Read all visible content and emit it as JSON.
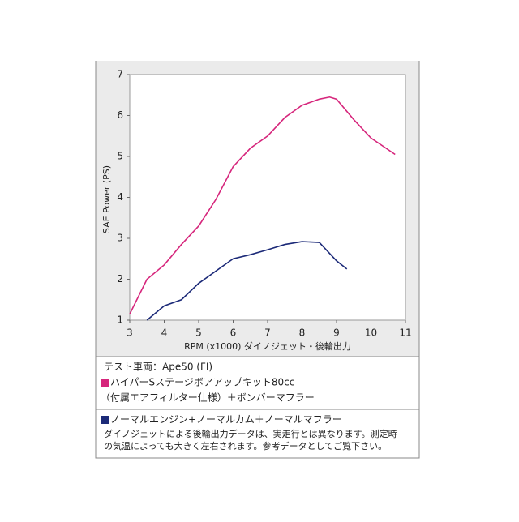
{
  "chart_data": {
    "type": "line",
    "ylabel": "SAE Power (PS)",
    "xlabel": "RPM (x1000) ダイノジェット・後輪出力",
    "xlim": [
      3,
      11
    ],
    "xticks": [
      3,
      4,
      5,
      6,
      7,
      8,
      9,
      10,
      11
    ],
    "ylim": [
      1,
      7
    ],
    "yticks": [
      1,
      2,
      3,
      4,
      5,
      6,
      7
    ],
    "test_vehicle": "テスト車両：Ape50 (FI)",
    "series": [
      {
        "name": "ハイパーSステージボアアップキット80cc",
        "detail": "（付属エアフィルター仕様）＋ボンバーマフラー",
        "color": "#d6267c",
        "x": [
          3.0,
          3.5,
          4.0,
          4.5,
          5.0,
          5.5,
          6.0,
          6.5,
          7.0,
          7.5,
          8.0,
          8.5,
          8.8,
          9.0,
          9.5,
          10.0,
          10.7
        ],
        "values": [
          1.15,
          2.0,
          2.35,
          2.85,
          3.3,
          3.95,
          4.75,
          5.2,
          5.5,
          5.95,
          6.25,
          6.4,
          6.45,
          6.4,
          5.9,
          5.45,
          5.05
        ]
      },
      {
        "name": "ノーマルエンジン+ノーマルカム＋ノーマルマフラー",
        "color": "#1c2a78",
        "x": [
          3.5,
          4.0,
          4.5,
          5.0,
          5.5,
          6.0,
          6.5,
          7.0,
          7.5,
          8.0,
          8.5,
          9.0,
          9.3
        ],
        "values": [
          1.0,
          1.35,
          1.5,
          1.9,
          2.2,
          2.5,
          2.6,
          2.72,
          2.85,
          2.92,
          2.9,
          2.45,
          2.25
        ]
      }
    ],
    "footnote": [
      "ダイノジェットによる後輪出力データは、実走行とは異なります。測定時",
      "の気温によっても大きく左右されます。参考データとしてご覧下さい。"
    ]
  }
}
